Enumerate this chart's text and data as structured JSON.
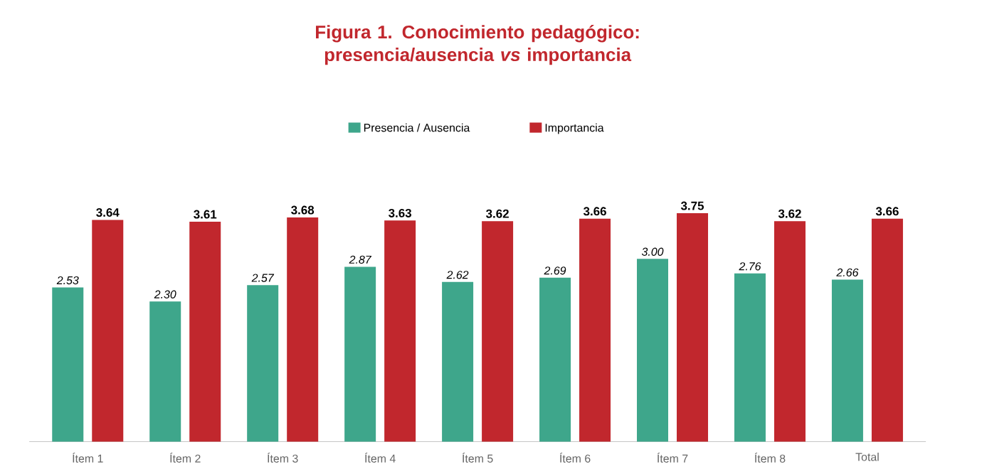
{
  "chart_data": {
    "type": "bar",
    "title": "Figura 1. Conocimiento pedagógico: presencia/ausencia *vs* importancia",
    "categories": [
      "Ítem 1",
      "Ítem 2",
      "Ítem 3",
      "Ítem 4",
      "Ítem 5",
      "Ítem 6",
      "Ítem 7",
      "Ítem 8",
      "Total"
    ],
    "series": [
      {
        "name": "Presencia / Ausencia",
        "color": "#3ea68b",
        "values": [
          2.53,
          2.3,
          2.57,
          2.87,
          2.62,
          2.69,
          3.0,
          2.76,
          2.66
        ],
        "value_labels": [
          "2.53",
          "2.30",
          "2.57",
          "2.87",
          "2.62",
          "2.69",
          "3.00",
          "2.76",
          "2.66"
        ]
      },
      {
        "name": "Importancia",
        "color": "#c1272d",
        "values": [
          3.64,
          3.61,
          3.68,
          3.63,
          3.62,
          3.66,
          3.75,
          3.62,
          3.66
        ],
        "value_labels": [
          "3.64",
          "3.61",
          "3.68",
          "3.63",
          "3.62",
          "3.66",
          "3.75",
          "3.62",
          "3.66"
        ]
      }
    ],
    "legend": "top"
  }
}
